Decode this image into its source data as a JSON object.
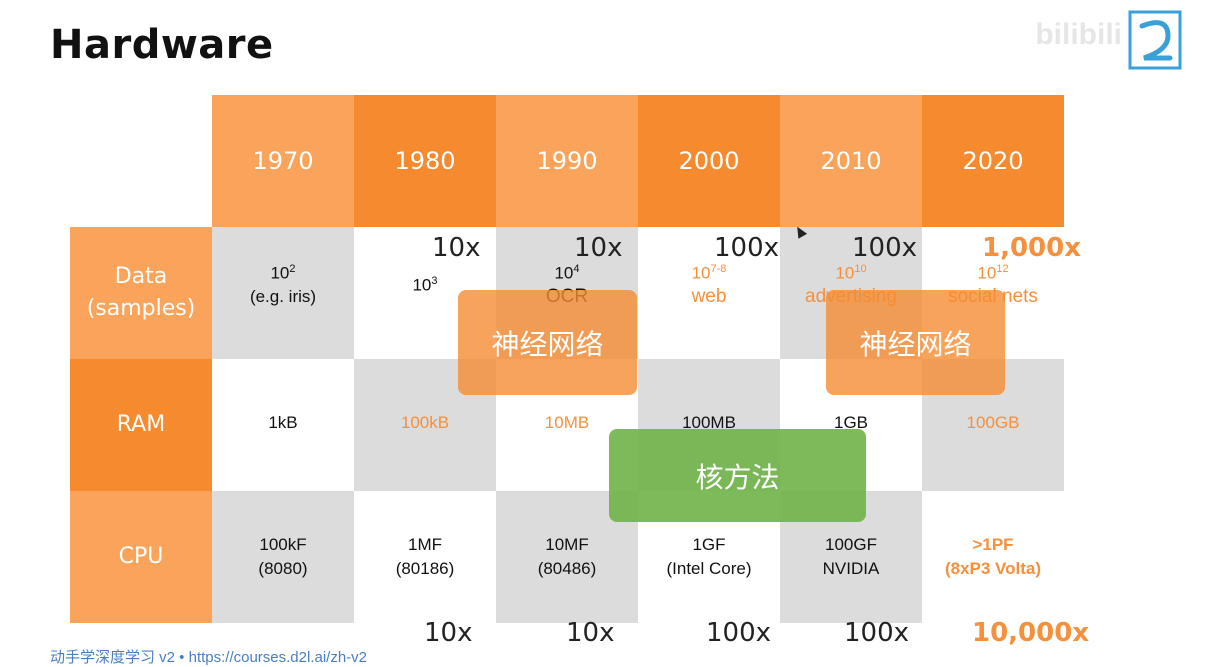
{
  "slide": {
    "title": "Hardware",
    "footer": "动手学深度学习 v2 • https://courses.d2l.ai/zh-v2",
    "logo_icon": "d2l-logo-icon"
  },
  "table": {
    "years": [
      "1970",
      "1980",
      "1990",
      "2000",
      "2010",
      "2020"
    ],
    "rows": [
      {
        "label": "Data\n(samples)",
        "cells": [
          {
            "value": "10",
            "sup": "2",
            "sub": "(e.g. iris)"
          },
          {
            "value": "10",
            "sup": "3",
            "sub": ""
          },
          {
            "value": "10",
            "sup": "4",
            "sub": "OCR"
          },
          {
            "value": "10",
            "sup": "7-8",
            "sub": "web"
          },
          {
            "value": "10",
            "sup": "10",
            "sub": "advertising"
          },
          {
            "value": "10",
            "sup": "12",
            "sub": "social nets"
          }
        ]
      },
      {
        "label": "RAM",
        "cells": [
          {
            "value": "1kB"
          },
          {
            "value": "100kB"
          },
          {
            "value": "10MB"
          },
          {
            "value": "100MB"
          },
          {
            "value": "1GB"
          },
          {
            "value": "100GB"
          }
        ]
      },
      {
        "label": "CPU",
        "cells": [
          {
            "value": "100kF\n(8080)"
          },
          {
            "value": "1MF\n(80186)"
          },
          {
            "value": "10MF\n(80486)"
          },
          {
            "value": "1GF\n(Intel Core)"
          },
          {
            "value": "100GF\nNVIDIA"
          },
          {
            "value": ">1PF\n(8xP3 Volta)"
          }
        ]
      }
    ],
    "data_multipliers": [
      "10x",
      "10x",
      "100x",
      "100x",
      "1,000x"
    ],
    "cpu_multipliers": [
      "10x",
      "10x",
      "100x",
      "100x",
      "10,000x"
    ]
  },
  "overlays": {
    "neural_net_1": "神经网络",
    "neural_net_2": "神经网络",
    "kernel_methods": "核方法"
  },
  "colors": {
    "orange_light": "#f9a45a",
    "orange_dark": "#f58a2e",
    "gray": "#dcdcdc",
    "accent_text": "#f5903d",
    "kernel_green": "#6eb248"
  }
}
